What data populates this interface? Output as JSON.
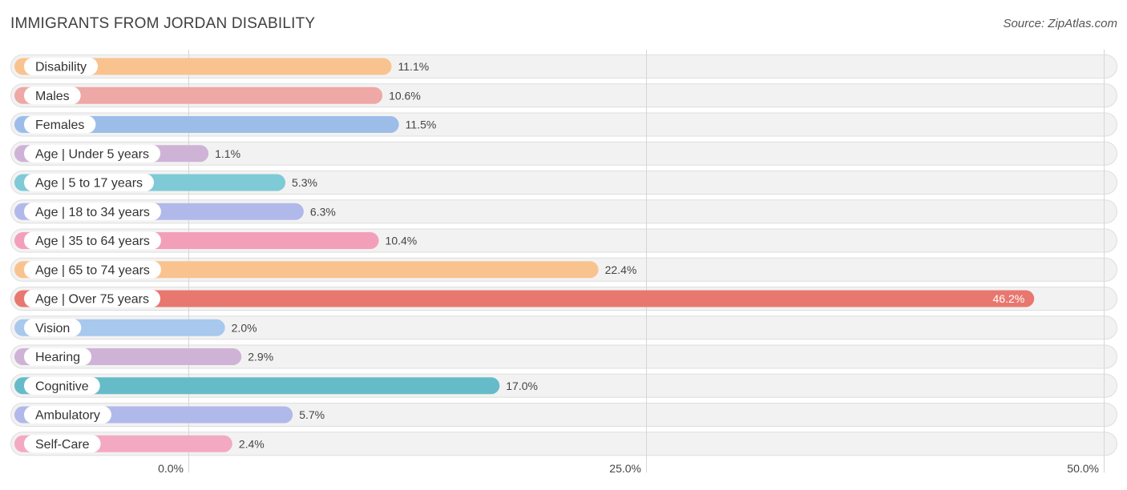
{
  "header": {
    "title": "IMMIGRANTS FROM JORDAN DISABILITY",
    "source": "Source: ZipAtlas.com"
  },
  "chart_data": {
    "type": "bar",
    "orientation": "horizontal",
    "title": "IMMIGRANTS FROM JORDAN DISABILITY",
    "xlim": [
      0,
      50
    ],
    "grid": true,
    "unit": "%",
    "ticks": [
      {
        "value": 0,
        "label": "0.0%"
      },
      {
        "value": 25,
        "label": "25.0%"
      },
      {
        "value": 50,
        "label": "50.0%"
      }
    ],
    "categories": [
      "Disability",
      "Males",
      "Females",
      "Age | Under 5 years",
      "Age | 5 to 17 years",
      "Age | 18 to 34 years",
      "Age | 35 to 64 years",
      "Age | 65 to 74 years",
      "Age | Over 75 years",
      "Vision",
      "Hearing",
      "Cognitive",
      "Ambulatory",
      "Self-Care"
    ],
    "values": [
      11.1,
      10.6,
      11.5,
      1.1,
      5.3,
      6.3,
      10.4,
      22.4,
      46.2,
      2.0,
      2.9,
      17.0,
      5.7,
      2.4
    ],
    "value_labels": [
      "11.1%",
      "10.6%",
      "11.5%",
      "1.1%",
      "5.3%",
      "6.3%",
      "10.4%",
      "22.4%",
      "46.2%",
      "2.0%",
      "2.9%",
      "17.0%",
      "5.7%",
      "2.4%"
    ],
    "colors": [
      "#f9c38f",
      "#eea8a6",
      "#9dbde9",
      "#cfb3d6",
      "#7ecad6",
      "#b1b9ea",
      "#f49fba",
      "#f9c38f",
      "#e8776f",
      "#a8c8ee",
      "#cfb3d6",
      "#65bcc8",
      "#b1b9ea",
      "#f4a9c3"
    ]
  }
}
